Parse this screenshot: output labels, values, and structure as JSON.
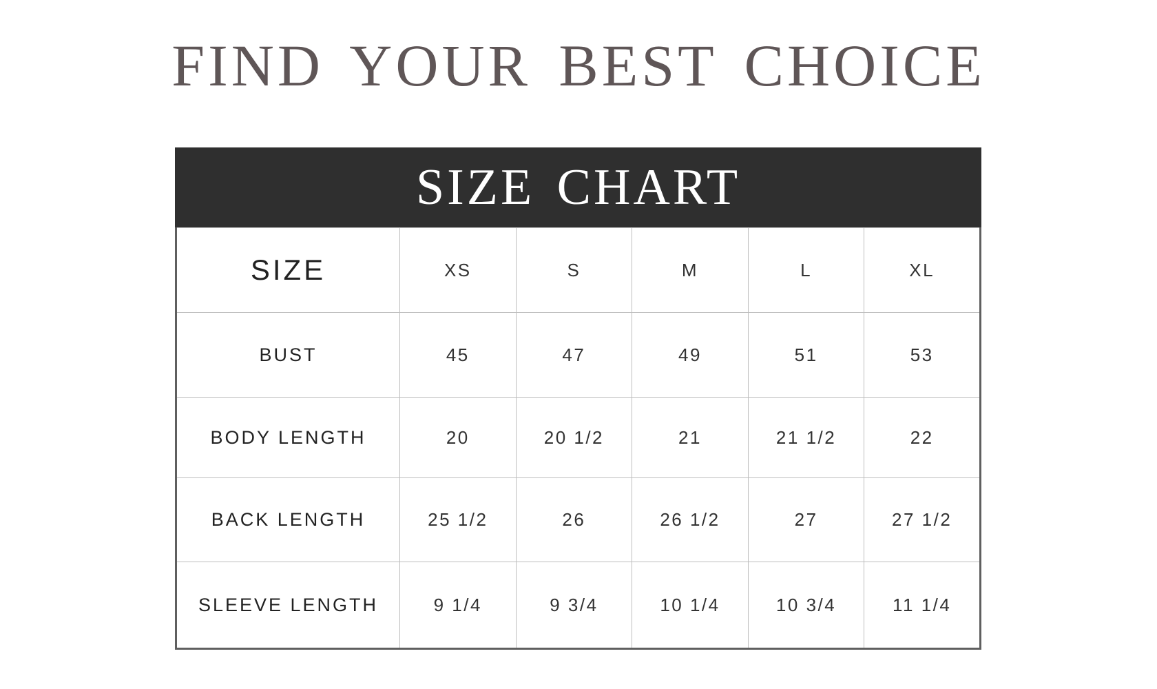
{
  "title": "FIND YOUR BEST CHOICE",
  "chart_header": "SIZE CHART",
  "table": {
    "header_label": "SIZE",
    "sizes": [
      "XS",
      "S",
      "M",
      "L",
      "XL"
    ],
    "rows": [
      {
        "label": "BUST",
        "values": [
          "45",
          "47",
          "49",
          "51",
          "53"
        ]
      },
      {
        "label": "BODY LENGTH",
        "values": [
          "20",
          "20 1/2",
          "21",
          "21 1/2",
          "22"
        ]
      },
      {
        "label": "BACK LENGTH",
        "values": [
          "25 1/2",
          "26",
          "26 1/2",
          "27",
          "27 1/2"
        ]
      },
      {
        "label": "SLEEVE LENGTH",
        "values": [
          "9 1/4",
          "9 3/4",
          "10 1/4",
          "10 3/4",
          "11 1/4"
        ]
      }
    ]
  },
  "colors": {
    "title": "#5f5657",
    "header_bg": "#2f2f2f"
  }
}
